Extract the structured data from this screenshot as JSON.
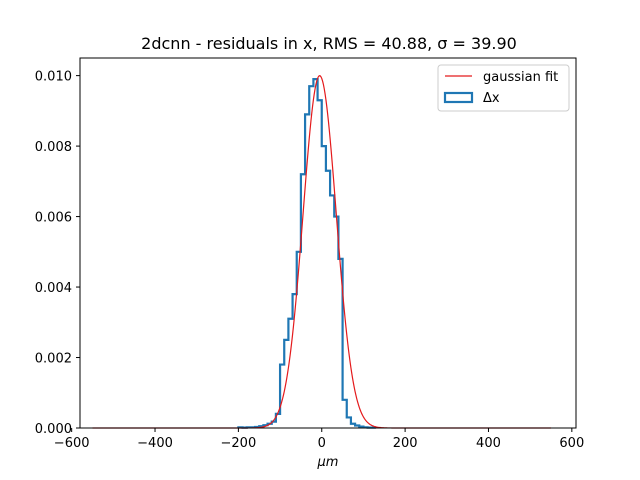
{
  "chart_data": {
    "type": "histogram",
    "title": "2dcnn - residuals in x, RMS = 40.88, σ = 39.90",
    "xlabel": "μm",
    "ylabel": "",
    "xlim": [
      -580,
      610
    ],
    "ylim": [
      0,
      0.0105
    ],
    "xticks": [
      -600,
      -400,
      -200,
      0,
      200,
      400,
      600
    ],
    "xtick_labels": [
      "−600",
      "−400",
      "−200",
      "0",
      "200",
      "400",
      "600"
    ],
    "yticks": [
      0,
      0.002,
      0.004,
      0.006,
      0.008,
      0.01
    ],
    "ytick_labels": [
      "0.000",
      "0.002",
      "0.004",
      "0.006",
      "0.008",
      "0.010"
    ],
    "grid": false,
    "legend_position": "upper right",
    "legend": [
      {
        "label": "gaussian fit",
        "color": "#e41a1c",
        "style": "line"
      },
      {
        "label": "Δx",
        "color": "#1f77b4",
        "style": "step"
      }
    ],
    "series": [
      {
        "name": "Δx",
        "kind": "step-histogram",
        "color": "#1f77b4",
        "bin_edges": [
          -200,
          -190,
          -180,
          -170,
          -160,
          -150,
          -140,
          -130,
          -120,
          -110,
          -100,
          -90,
          -80,
          -70,
          -60,
          -50,
          -40,
          -30,
          -20,
          -10,
          0,
          10,
          20,
          30,
          40,
          50,
          60,
          70,
          80,
          90,
          100,
          110,
          120,
          130
        ],
        "density": [
          2e-05,
          1e-05,
          2e-05,
          2e-05,
          3e-05,
          5e-05,
          8e-05,
          0.00012,
          0.00018,
          0.0004,
          0.0018,
          0.0025,
          0.0031,
          0.0038,
          0.005,
          0.0072,
          0.0089,
          0.0097,
          0.0099,
          0.0093,
          0.008,
          0.0073,
          0.0066,
          0.006,
          0.0048,
          0.0008,
          0.0003,
          0.00012,
          7e-05,
          4e-05,
          2e-05,
          1e-05,
          1e-05
        ]
      },
      {
        "name": "gaussian fit",
        "kind": "line",
        "color": "#e41a1c",
        "mu": -5,
        "sigma": 39.9,
        "x_range": [
          -550,
          550
        ]
      }
    ]
  }
}
